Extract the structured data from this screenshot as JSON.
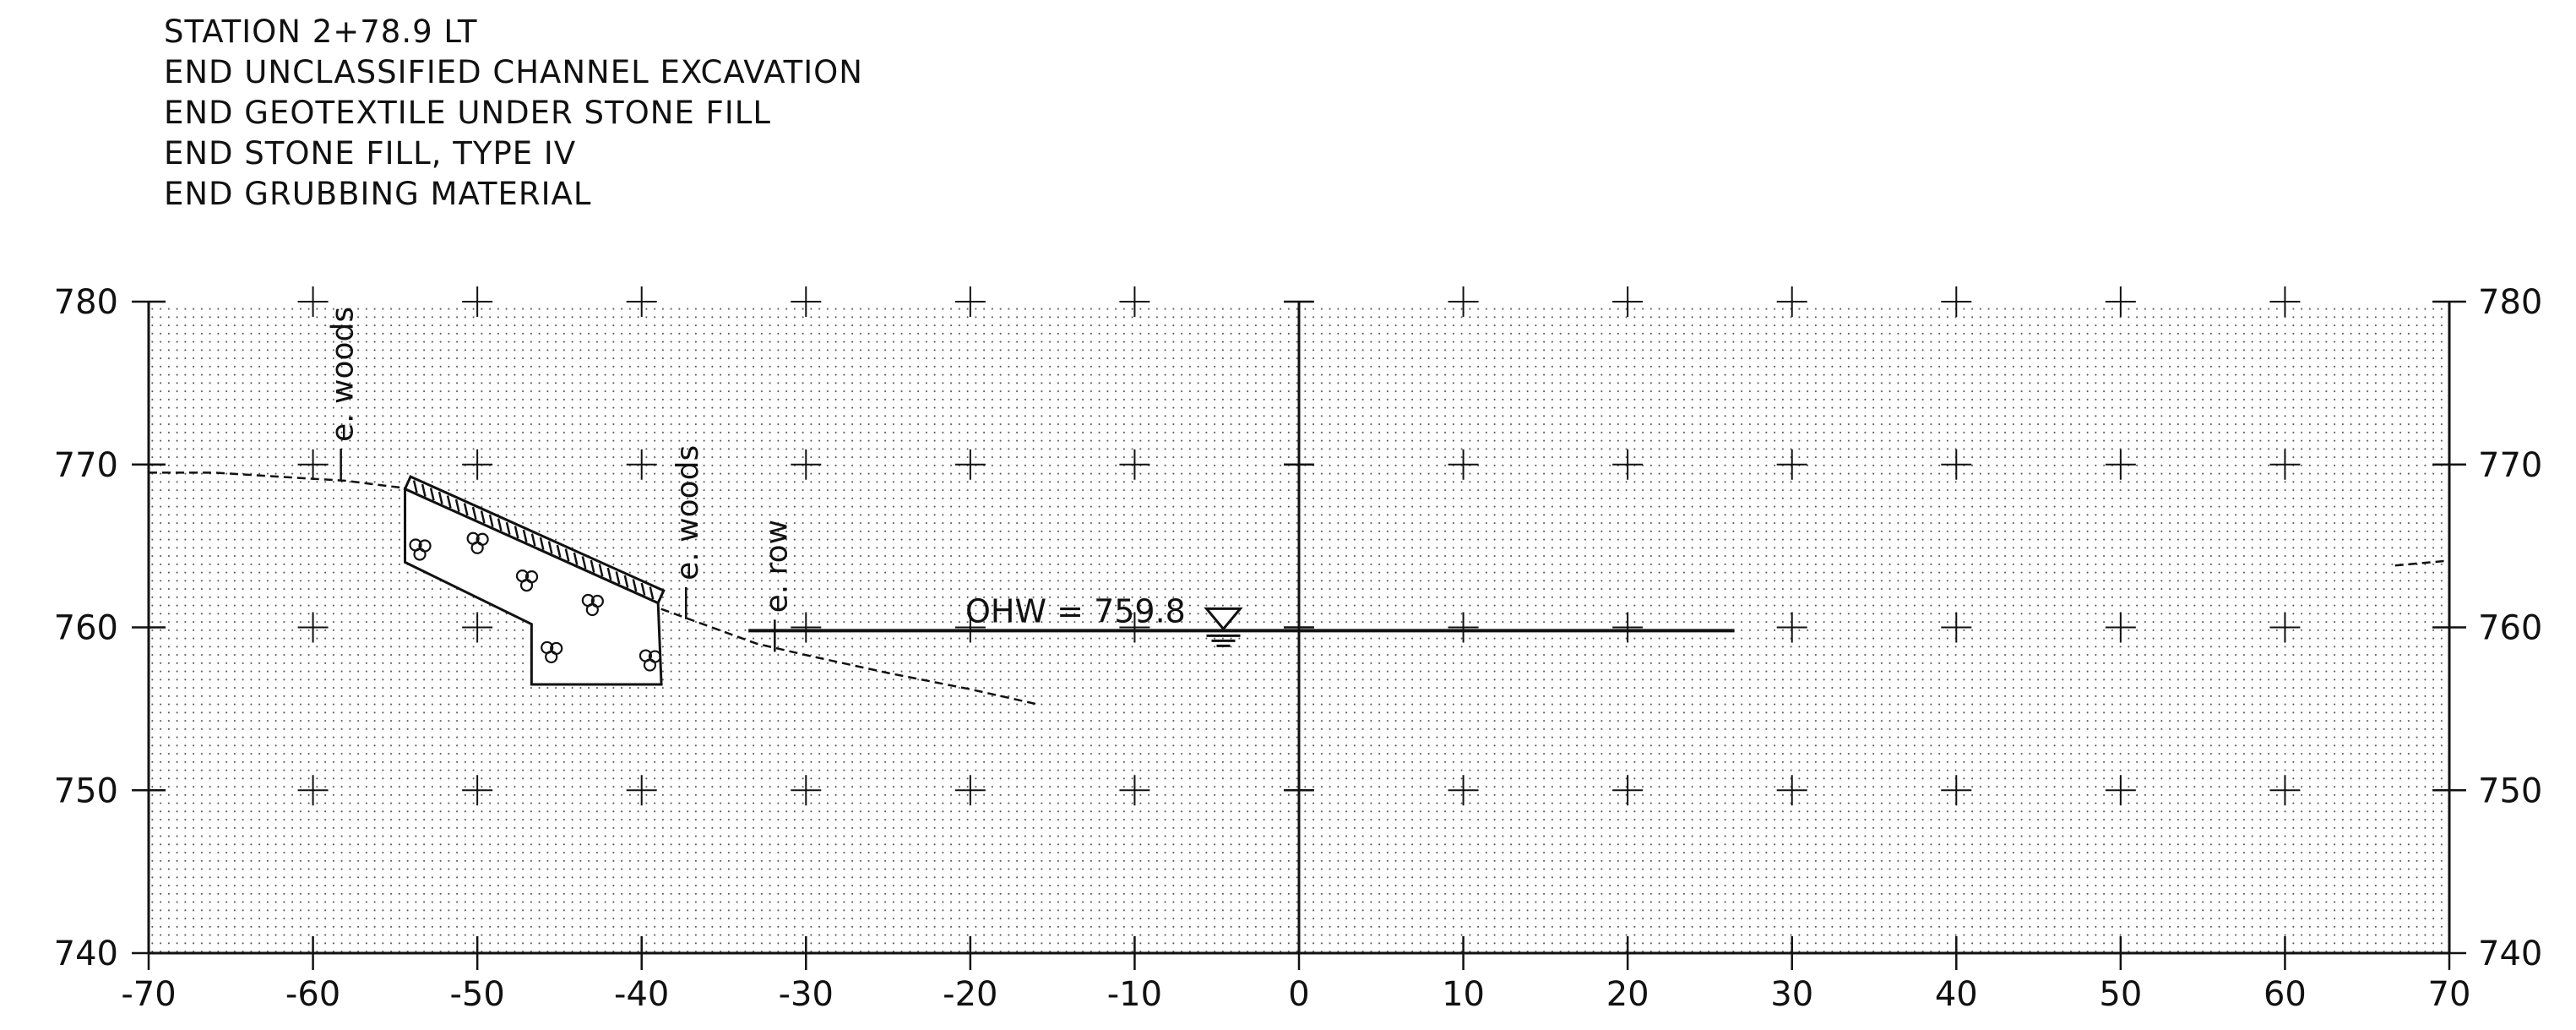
{
  "notes": {
    "station": "STATION 2+78.9 LT",
    "line1": "END UNCLASSIFIED CHANNEL EXCAVATION",
    "line2": "END GEOTEXTILE UNDER STONE FILL",
    "line3": "END STONE FILL, TYPE IV",
    "line4": "END GRUBBING MATERIAL"
  },
  "axes": {
    "x_ticks": [
      -70,
      -60,
      -50,
      -40,
      -30,
      -20,
      -10,
      0,
      10,
      20,
      30,
      40,
      50,
      60,
      70
    ],
    "y_ticks": [
      740,
      750,
      760,
      770,
      780
    ],
    "xlim": [
      -70,
      70
    ],
    "ylim": [
      740,
      780
    ],
    "grid": "dotted"
  },
  "annotations": {
    "woods_left": "e. woods",
    "woods_right": "e. woods",
    "row": "e. row",
    "ohw": "OHW = 759.8"
  },
  "chart_data": {
    "type": "cross-section",
    "ground_profile": [
      [
        -70,
        769.5
      ],
      [
        -66,
        769.5
      ],
      [
        -58,
        769.0
      ],
      [
        -54,
        768.5
      ],
      [
        -39,
        761.2
      ],
      [
        -36,
        760.1
      ],
      [
        -33,
        759.0
      ],
      [
        -30,
        758.3
      ],
      [
        -25,
        757.2
      ],
      [
        -20,
        756.2
      ],
      [
        -16,
        755.3
      ]
    ],
    "ground_profile_right": [
      [
        66.7,
        763.8
      ],
      [
        70,
        764.1
      ]
    ],
    "stone_fill_outline": [
      [
        -54.4,
        768.5
      ],
      [
        -39.0,
        761.5
      ],
      [
        -38.8,
        756.5
      ],
      [
        -46.7,
        756.5
      ],
      [
        -46.7,
        760.2
      ],
      [
        -54.4,
        764.0
      ]
    ],
    "geotextile_surface": [
      [
        -54.4,
        768.5
      ],
      [
        -39.0,
        761.5
      ]
    ],
    "stone_symbols": [
      [
        -53.5,
        764.8
      ],
      [
        -50,
        765.2
      ],
      [
        -47,
        762.9
      ],
      [
        -43,
        761.4
      ],
      [
        -45.5,
        758.5
      ],
      [
        -39.5,
        758.0
      ]
    ],
    "ohw": {
      "value": 759.8,
      "x_from": -33.5,
      "x_to": 26.5,
      "symbol_x": -4.6
    },
    "markers": [
      {
        "label_key": "woods_left",
        "x": -58.3,
        "y": 769.0
      },
      {
        "label_key": "woods_right",
        "x": -37.3,
        "y": 760.5
      },
      {
        "label_key": "row",
        "x": -31.9,
        "y": 758.5
      }
    ]
  }
}
